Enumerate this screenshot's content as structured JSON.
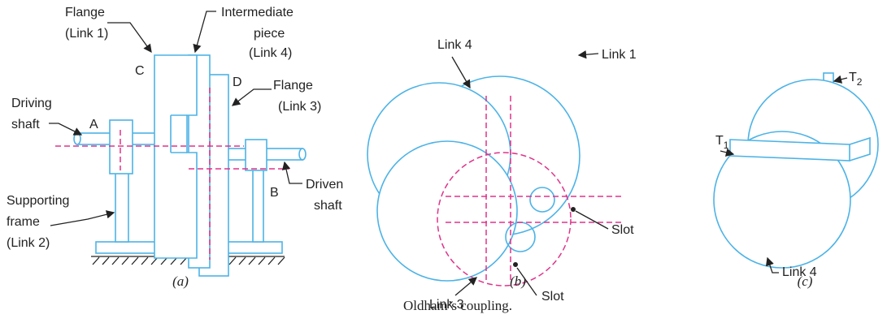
{
  "panel_a": {
    "labels": [
      "Flange",
      "(Link 1)",
      "Intermediate",
      "piece",
      "(Link 4)",
      "C",
      "D",
      "Flange",
      "(Link 3)",
      "Driving",
      "shaft",
      "A",
      "B",
      "Driven",
      "shaft",
      "Supporting",
      "frame",
      "(Link 2)"
    ],
    "caption": "(a)"
  },
  "panel_b": {
    "labels": [
      "Link 4",
      "Link 1",
      "Slot",
      "Slot",
      "Link 3"
    ],
    "caption": "(b)"
  },
  "panel_c": {
    "t1": {
      "main": "T",
      "sub": "1"
    },
    "t2": {
      "main": "T",
      "sub": "2"
    },
    "labels": [
      "Link 4"
    ],
    "caption": "(c)"
  },
  "caption": "Oldham’s coupling."
}
